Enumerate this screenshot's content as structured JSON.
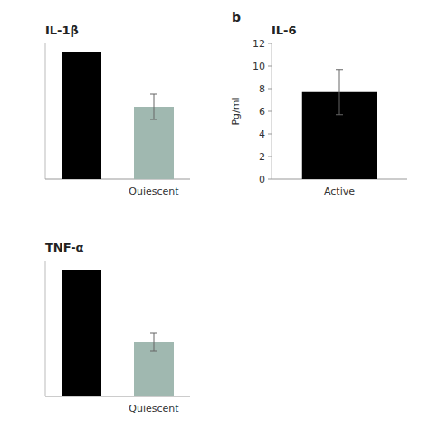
{
  "chart_data": [
    {
      "type": "bar",
      "title": "IL-1β",
      "categories": [
        null,
        "Quiescent"
      ],
      "values": [
        28,
        16
      ],
      "errors": [
        0,
        2.8
      ],
      "colors": [
        "#000000",
        "#a0b8b0"
      ],
      "ylim": [
        0,
        30
      ],
      "tick_labels": "x"
    },
    {
      "type": "bar",
      "title": "IL-6",
      "annotations": [
        "b"
      ],
      "ylabel": "Pg/ml",
      "categories": [
        "Active"
      ],
      "values": [
        7.7
      ],
      "errors": [
        2.0
      ],
      "colors": [
        "#000000"
      ],
      "ylim": [
        0,
        12
      ],
      "yticks": [
        0,
        2,
        4,
        6,
        8,
        10,
        12
      ]
    },
    {
      "type": "bar",
      "title": "TNF-α",
      "categories": [
        null,
        "Quiescent"
      ],
      "values": [
        28,
        12
      ],
      "errors": [
        0,
        2.0
      ],
      "colors": [
        "#000000",
        "#a0b8b0"
      ],
      "ylim": [
        0,
        30
      ],
      "tick_labels": "x"
    }
  ]
}
